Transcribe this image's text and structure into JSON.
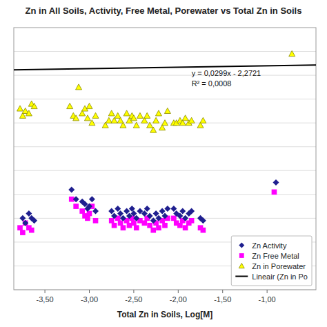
{
  "chart_data": {
    "type": "scatter",
    "title": "Zn in All Soils, Activity, Free Metal, Porewater vs Total Zn in Soils",
    "x_label": "Total Zn in Soils, Log[M]",
    "xlim": [
      -3.85,
      -0.45
    ],
    "ylim": [
      -7.0,
      -1.5
    ],
    "xticks": [
      {
        "value": -3.5,
        "label": "-3,50"
      },
      {
        "value": -3.0,
        "label": "-3,00"
      },
      {
        "value": -2.5,
        "label": "-2,50"
      },
      {
        "value": -2.0,
        "label": "-2,00"
      },
      {
        "value": -1.5,
        "label": "-1,50"
      },
      {
        "value": -1.0,
        "label": "-1,00"
      }
    ],
    "yticks": [
      -7.0,
      -6.5,
      -6.0,
      -5.5,
      -5.0,
      -4.5,
      -4.0,
      -3.5,
      -3.0,
      -2.5,
      -2.0
    ],
    "tick_labels": "x",
    "grid": true,
    "legend": "lower right",
    "series": [
      {
        "name": "Zn Activity",
        "type": "scatter",
        "marker": "diamond",
        "color": "#1F1F8F",
        "x": [
          -3.75,
          -3.72,
          -3.68,
          -3.65,
          -3.62,
          -3.2,
          -3.15,
          -3.08,
          -3.05,
          -3.02,
          -3.0,
          -2.97,
          -2.93,
          -2.75,
          -2.72,
          -2.68,
          -2.65,
          -2.62,
          -2.58,
          -2.55,
          -2.52,
          -2.5,
          -2.47,
          -2.43,
          -2.38,
          -2.35,
          -2.32,
          -2.28,
          -2.25,
          -2.22,
          -2.18,
          -2.15,
          -2.12,
          -2.05,
          -2.02,
          -1.98,
          -1.95,
          -1.92,
          -1.88,
          -1.85,
          -1.75,
          -1.72,
          -0.9
        ],
        "values": [
          -5.5,
          -5.6,
          -5.4,
          -5.5,
          -5.55,
          -4.9,
          -5.1,
          -5.15,
          -5.2,
          -5.3,
          -5.25,
          -5.1,
          -5.35,
          -5.35,
          -5.45,
          -5.3,
          -5.4,
          -5.5,
          -5.35,
          -5.45,
          -5.3,
          -5.4,
          -5.5,
          -5.35,
          -5.4,
          -5.3,
          -5.45,
          -5.55,
          -5.4,
          -5.5,
          -5.35,
          -5.45,
          -5.3,
          -5.3,
          -5.4,
          -5.45,
          -5.35,
          -5.5,
          -5.4,
          -5.35,
          -5.5,
          -5.55,
          -4.75
        ]
      },
      {
        "name": "Zn Free Metal",
        "type": "scatter",
        "marker": "square",
        "color": "#FF00FF",
        "x": [
          -3.78,
          -3.75,
          -3.72,
          -3.68,
          -3.65,
          -3.2,
          -3.15,
          -3.08,
          -3.05,
          -3.02,
          -3.0,
          -2.97,
          -2.93,
          -2.75,
          -2.72,
          -2.68,
          -2.65,
          -2.62,
          -2.58,
          -2.55,
          -2.52,
          -2.5,
          -2.47,
          -2.43,
          -2.38,
          -2.35,
          -2.32,
          -2.28,
          -2.25,
          -2.22,
          -2.18,
          -2.15,
          -2.12,
          -2.05,
          -2.02,
          -1.98,
          -1.95,
          -1.92,
          -1.88,
          -1.85,
          -1.75,
          -1.72,
          -0.92
        ],
        "values": [
          -5.7,
          -5.8,
          -5.6,
          -5.7,
          -5.75,
          -5.1,
          -5.25,
          -5.35,
          -5.45,
          -5.5,
          -5.4,
          -5.25,
          -5.55,
          -5.55,
          -5.65,
          -5.5,
          -5.6,
          -5.7,
          -5.55,
          -5.65,
          -5.5,
          -5.6,
          -5.7,
          -5.55,
          -5.6,
          -5.5,
          -5.65,
          -5.75,
          -5.6,
          -5.7,
          -5.55,
          -5.65,
          -5.5,
          -5.5,
          -5.6,
          -5.65,
          -5.55,
          -5.7,
          -5.6,
          -5.55,
          -5.7,
          -5.75,
          -4.95
        ]
      },
      {
        "name": "Zn in Porewater",
        "type": "scatter",
        "marker": "triangle",
        "color": "#FFFF00",
        "x": [
          -3.78,
          -3.75,
          -3.72,
          -3.68,
          -3.65,
          -3.62,
          -3.22,
          -3.18,
          -3.15,
          -3.12,
          -3.08,
          -3.05,
          -3.02,
          -3.0,
          -2.97,
          -2.93,
          -2.82,
          -2.78,
          -2.75,
          -2.72,
          -2.68,
          -2.65,
          -2.62,
          -2.58,
          -2.55,
          -2.52,
          -2.5,
          -2.47,
          -2.43,
          -2.38,
          -2.35,
          -2.32,
          -2.28,
          -2.25,
          -2.22,
          -2.18,
          -2.15,
          -2.12,
          -2.05,
          -2.02,
          -1.98,
          -1.95,
          -1.92,
          -1.88,
          -1.85,
          -1.75,
          -1.72,
          -0.72
        ],
        "values": [
          -3.2,
          -3.35,
          -3.25,
          -3.3,
          -3.1,
          -3.15,
          -3.15,
          -3.35,
          -3.4,
          -2.75,
          -3.3,
          -3.2,
          -3.4,
          -3.15,
          -3.5,
          -3.35,
          -3.55,
          -3.45,
          -3.3,
          -3.45,
          -3.35,
          -3.45,
          -3.55,
          -3.3,
          -3.45,
          -3.35,
          -3.4,
          -3.55,
          -3.35,
          -3.45,
          -3.35,
          -3.55,
          -3.65,
          -3.45,
          -3.3,
          -3.6,
          -3.5,
          -3.25,
          -3.5,
          -3.5,
          -3.45,
          -3.5,
          -3.4,
          -3.5,
          -3.45,
          -3.55,
          -3.45,
          -2.05
        ]
      },
      {
        "name": "Lineair (Zn in Po",
        "type": "line",
        "line_style": "solid",
        "color": "#000000",
        "x": [
          -3.85,
          -0.45
        ],
        "values": [
          -2.387215,
          -2.285555
        ]
      }
    ],
    "annotations": [
      {
        "text": "y = 0,0299x - 2,2721",
        "x": -1.85,
        "y": -2.4
      },
      {
        "text": "R² = 0,0008",
        "x": -1.85,
        "y": -2.62
      }
    ]
  }
}
